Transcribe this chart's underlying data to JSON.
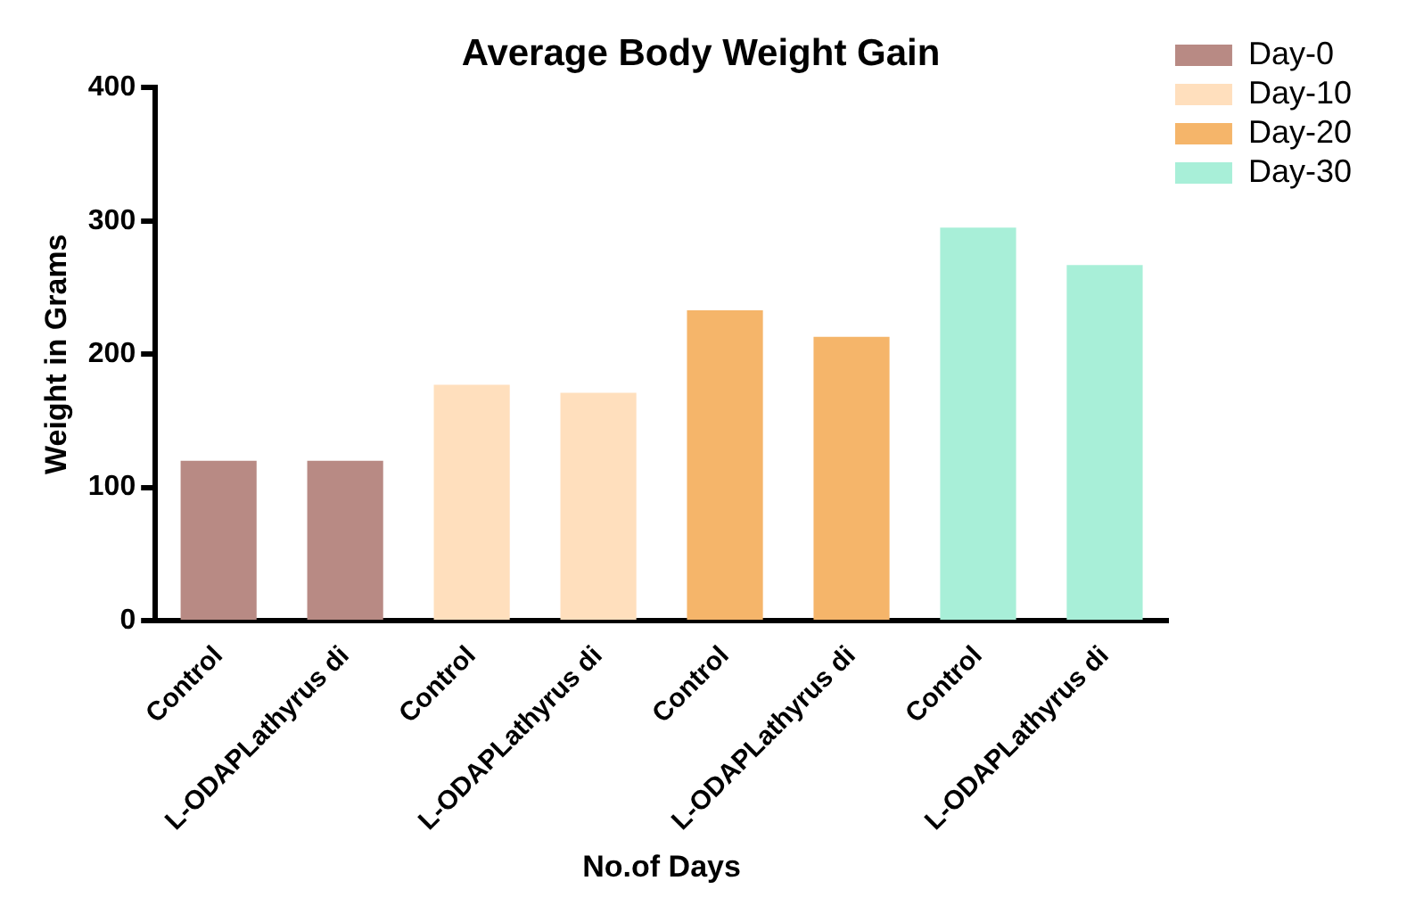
{
  "chart_data": {
    "type": "bar",
    "title": "Average Body Weight Gain",
    "xlabel": "No.of Days",
    "ylabel": "Weight in Grams",
    "categories": [
      "Control",
      "L-ODAPLathyrus di",
      "Control",
      "L-ODAPLathyrus di",
      "Control",
      "L-ODAPLathyrus di",
      "Control",
      "L-ODAPLathyrus di"
    ],
    "series": [
      {
        "name": "Day-0",
        "color": "#b88a84",
        "values": [
          120,
          120,
          null,
          null,
          null,
          null,
          null,
          null
        ]
      },
      {
        "name": "Day-10",
        "color": "#ffdfbd",
        "values": [
          null,
          null,
          177,
          171,
          null,
          null,
          null,
          null
        ]
      },
      {
        "name": "Day-20",
        "color": "#f5b56a",
        "values": [
          null,
          null,
          null,
          null,
          233,
          213,
          null,
          null
        ]
      },
      {
        "name": "Day-30",
        "color": "#a8efd8",
        "values": [
          null,
          null,
          null,
          null,
          null,
          null,
          295,
          267
        ]
      }
    ],
    "ylim": [
      0,
      400
    ],
    "yticks": [
      0,
      100,
      200,
      300,
      400
    ],
    "grid": false,
    "legend": "top right"
  }
}
